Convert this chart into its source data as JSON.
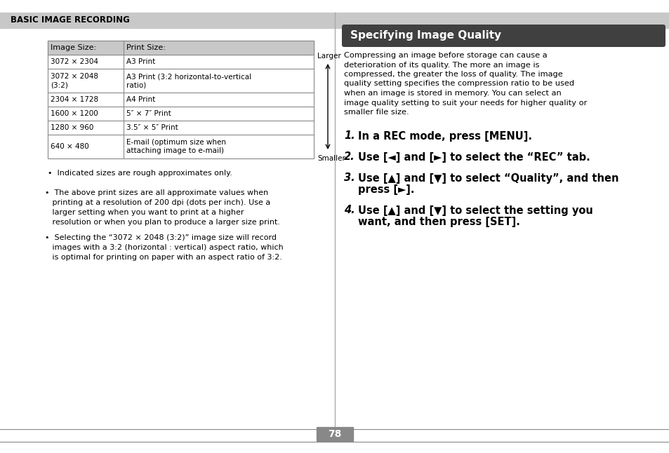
{
  "bg_color": "#f0f0f0",
  "page_bg": "#ffffff",
  "header_bg": "#c8c8c8",
  "header_text": "BASIC IMAGE RECORDING",
  "header_text_color": "#000000",
  "table_header_bg": "#c8c8c8",
  "table_col1_header": "Image Size:",
  "table_col2_header": "Print Size:",
  "table_rows": [
    [
      "3072 × 2304",
      "A3 Print"
    ],
    [
      "3072 × 2048\n(3:2)",
      "A3 Print (3:2 horizontal-to-vertical\nratio)"
    ],
    [
      "2304 × 1728",
      "A4 Print"
    ],
    [
      "1600 × 1200",
      "5″ × 7″ Print"
    ],
    [
      "1280 × 960",
      "3.5″ × 5″ Print"
    ],
    [
      "640 × 480",
      "E-mail (optimum size when\nattaching image to e-mail)"
    ]
  ],
  "larger_label": "Larger",
  "smaller_label": "Smaller",
  "note1": "•  Indicated sizes are rough approximates only.",
  "bullet1_lines": [
    "•  The above print sizes are all approximate values when",
    "   printing at a resolution of 200 dpi (dots per inch). Use a",
    "   larger setting when you want to print at a higher",
    "   resolution or when you plan to produce a larger size print."
  ],
  "bullet2_lines": [
    "•  Selecting the “3072 × 2048 (3:2)” image size will record",
    "   images with a 3:2 (horizontal : vertical) aspect ratio, which",
    "   is optimal for printing on paper with an aspect ratio of 3:2."
  ],
  "right_title": "Specifying Image Quality",
  "right_title_bg": "#404040",
  "right_title_color": "#ffffff",
  "right_body_lines": [
    "Compressing an image before storage can cause a",
    "deterioration of its quality. The more an image is",
    "compressed, the greater the loss of quality. The image",
    "quality setting specifies the compression ratio to be used",
    "when an image is stored in memory. You can select an",
    "image quality setting to suit your needs for higher quality or",
    "smaller file size."
  ],
  "steps": [
    {
      "num": "1.",
      "text": "In a REC mode, press [MENU]."
    },
    {
      "num": "2.",
      "text": "Use [◄] and [►] to select the “REC” tab."
    },
    {
      "num": "3.",
      "text_lines": [
        "Use [▲] and [▼] to select “Quality”, and then",
        "press [►]."
      ]
    },
    {
      "num": "4.",
      "text_lines": [
        "Use [▲] and [▼] to select the setting you",
        "want, and then press [SET]."
      ]
    }
  ],
  "page_num": "78",
  "page_num_bg": "#888888",
  "page_num_color": "#ffffff",
  "divider_color": "#aaaaaa",
  "table_border_color": "#888888"
}
